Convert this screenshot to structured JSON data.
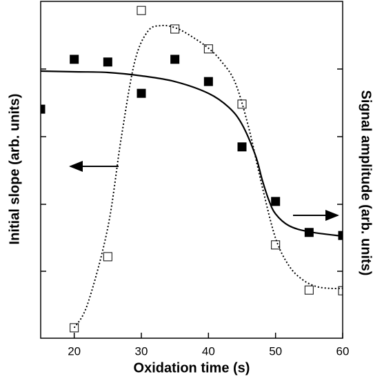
{
  "chart_data": {
    "type": "scatter",
    "x_label": "Oxidation time (s)",
    "y_label": "Initial slope (arb. units)",
    "y2_label": "Signal amplitude (arb. units)",
    "xlim": [
      15,
      60
    ],
    "xticks": [
      20,
      30,
      40,
      50,
      60
    ],
    "ylim": [
      0,
      100
    ],
    "y2lim": [
      0,
      100
    ],
    "series": [
      {
        "style": "filled-square",
        "color": "#000000",
        "axis": "y",
        "x": [
          15,
          20,
          25,
          30,
          35,
          40,
          45,
          50,
          55,
          60
        ],
        "values": [
          68.0,
          82.8,
          82.0,
          72.7,
          82.8,
          76.2,
          56.8,
          40.6,
          31.4,
          30.5
        ]
      },
      {
        "style": "solid-line",
        "color": "#000000",
        "axis": "y",
        "x": [
          15,
          20,
          25,
          30,
          35,
          40,
          43,
          45,
          47,
          48,
          49,
          50,
          52,
          55,
          60
        ],
        "values": [
          79.3,
          79.1,
          78.9,
          77.9,
          76.2,
          72.7,
          68.6,
          63.5,
          54.3,
          47.1,
          41.0,
          36.9,
          33.4,
          31.6,
          30.3
        ]
      },
      {
        "style": "open-square",
        "color": "#000000",
        "axis": "y2",
        "x": [
          20,
          25,
          30,
          35,
          40,
          45,
          50,
          55,
          60
        ],
        "values": [
          3.1,
          24.2,
          97.3,
          91.8,
          85.9,
          69.5,
          27.7,
          14.3,
          14.1
        ]
      },
      {
        "style": "dotted-line",
        "color": "#000000",
        "axis": "y2",
        "x": [
          20,
          22,
          25,
          27,
          29,
          31,
          33,
          35,
          37,
          40,
          42,
          44,
          46,
          48,
          50,
          52,
          54,
          56,
          58,
          60
        ],
        "values": [
          3.1,
          10.2,
          32.8,
          59.4,
          82.0,
          91.2,
          92.8,
          92.2,
          90.2,
          86.1,
          82.0,
          75.8,
          62.5,
          45.1,
          29.7,
          21.5,
          17.4,
          15.4,
          14.8,
          14.8
        ]
      }
    ]
  }
}
